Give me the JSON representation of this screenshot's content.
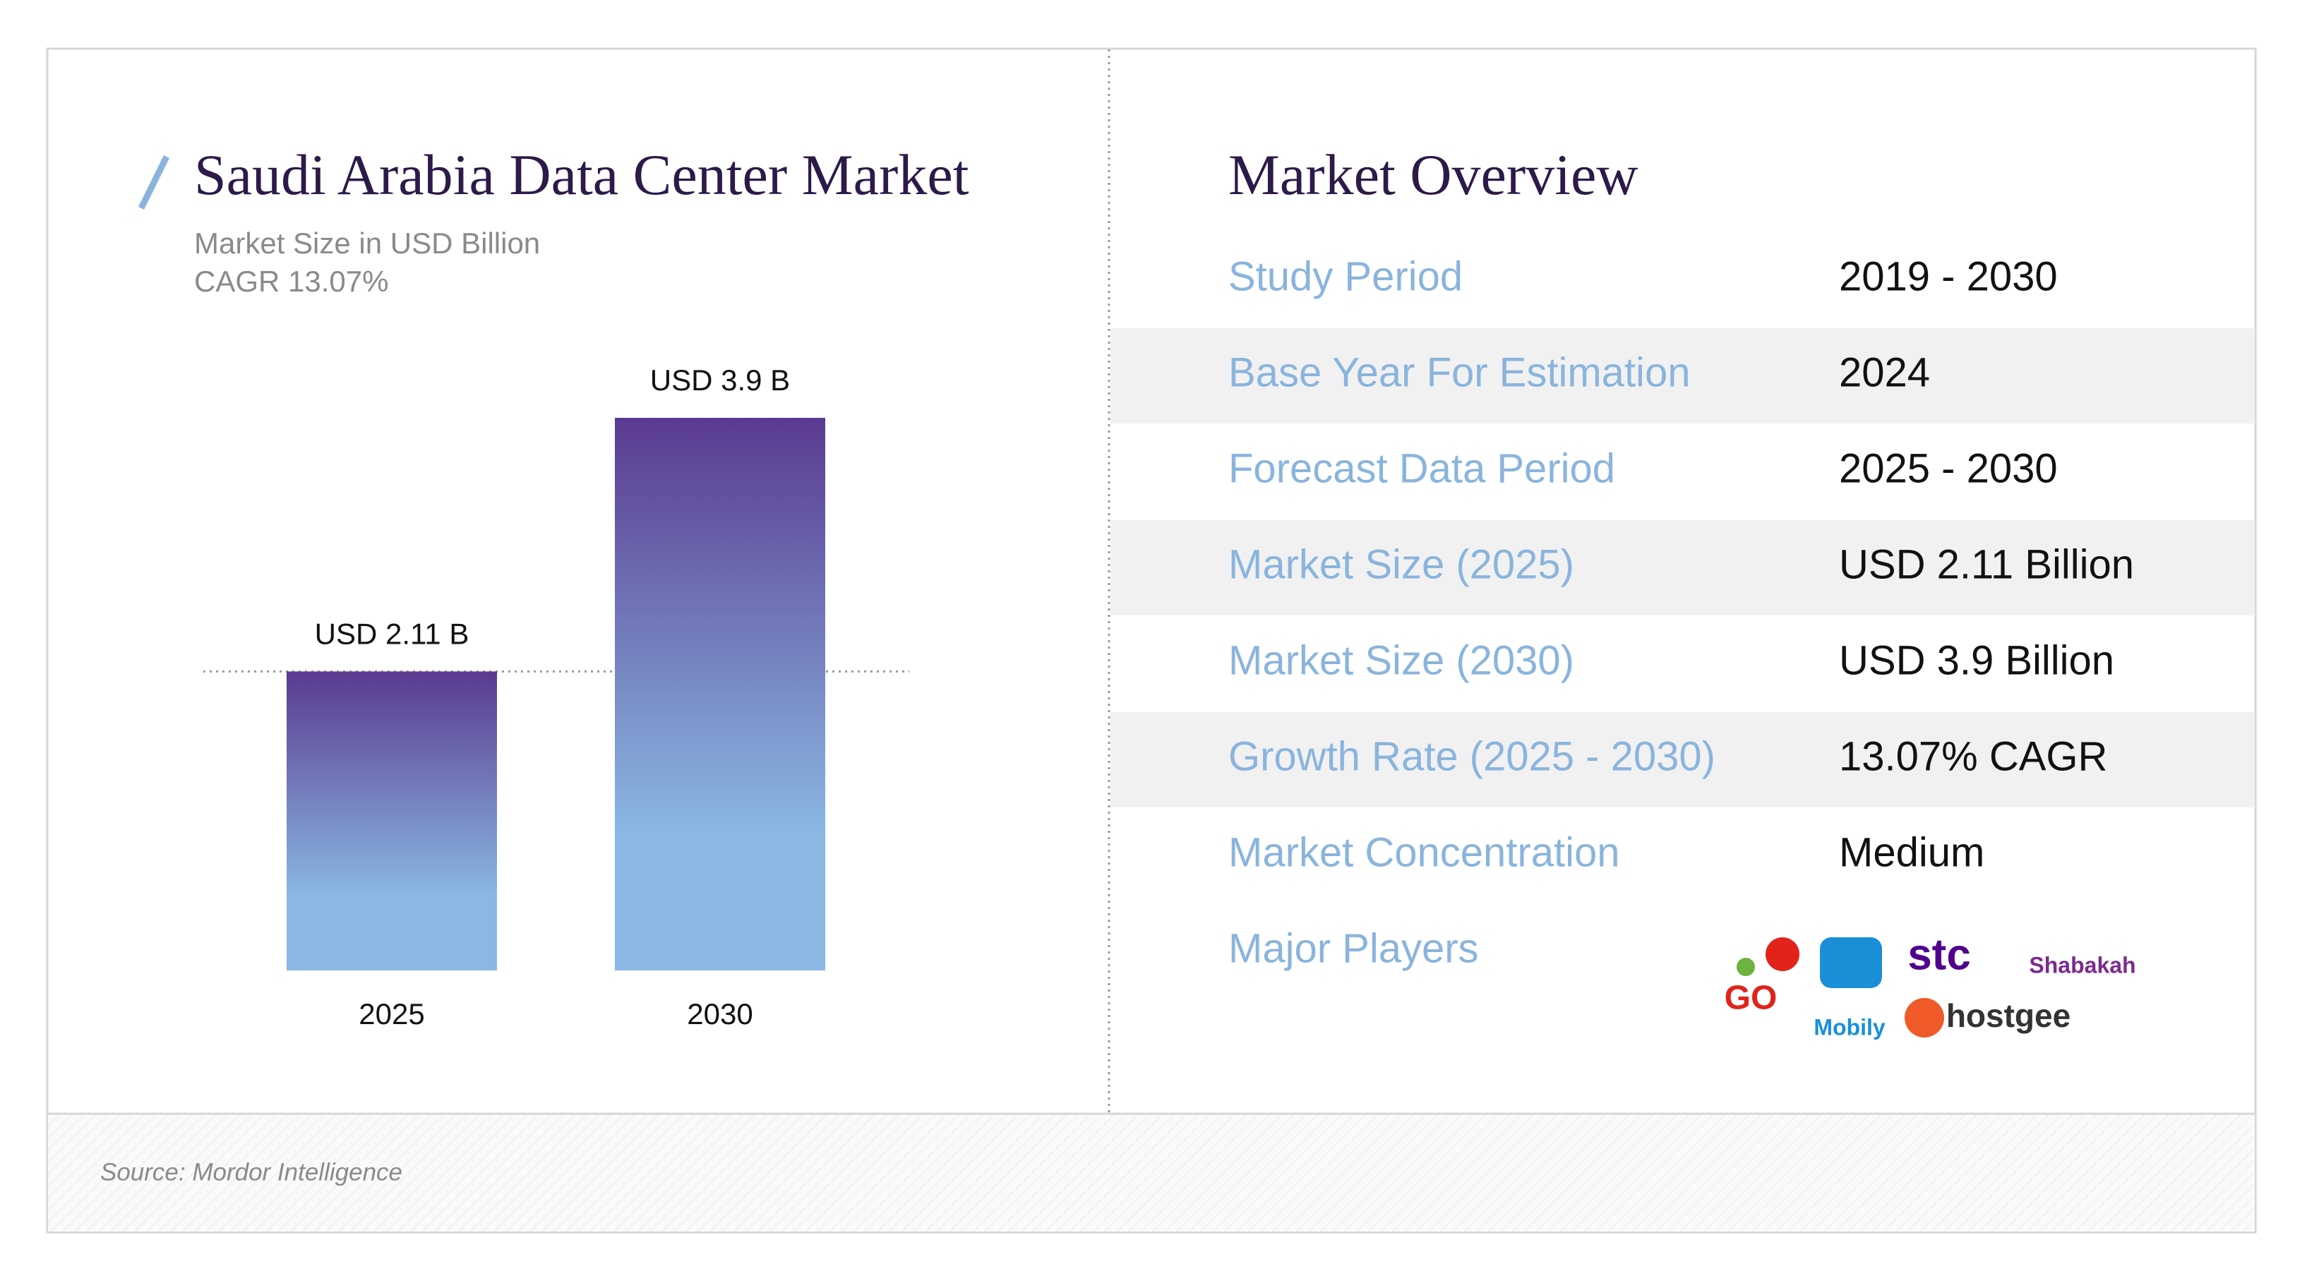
{
  "chart_data": {
    "type": "bar",
    "title": "Saudi Arabia Data Center Market",
    "subtitle": "Market Size in USD Billion",
    "annotation": "CAGR 13.07%",
    "categories": [
      "2025",
      "2030"
    ],
    "values": [
      2.11,
      3.9
    ],
    "value_labels": [
      "USD 2.11 B",
      "USD 3.9 B"
    ],
    "color_top": "#5a3a91",
    "color_bottom": "#8ab8e2"
  },
  "overview": {
    "title": "Market Overview",
    "rows": [
      [
        "Study Period",
        "2019 - 2030"
      ],
      [
        "Base Year For Estimation",
        "2024"
      ],
      [
        "Forecast Data Period",
        "2025 - 2030"
      ],
      [
        "Market Size (2025)",
        "USD 2.11 Billion"
      ],
      [
        "Market Size (2030)",
        "USD 3.9 Billion"
      ],
      [
        "Growth Rate (2025 - 2030)",
        "13.07% CAGR"
      ],
      [
        "Market Concentration",
        "Medium"
      ]
    ],
    "players_label": "Major Players",
    "players": [
      "GO",
      "Mobily",
      "stc",
      "Shabakah",
      "hostgee"
    ]
  },
  "source": "Source: Mordor Intelligence"
}
